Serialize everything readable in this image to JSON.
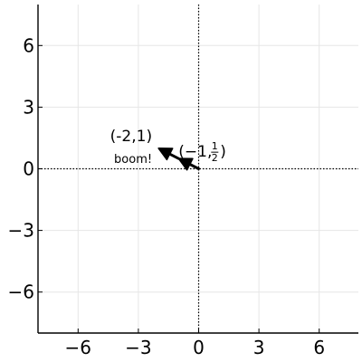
{
  "chart_data": {
    "type": "scatter",
    "title": "",
    "xlabel": "",
    "ylabel": "",
    "xlim": [
      -8,
      8
    ],
    "ylim": [
      -8,
      8
    ],
    "xticks": [
      -6,
      -3,
      0,
      3,
      6
    ],
    "yticks": [
      -6,
      -3,
      0,
      3,
      6
    ],
    "xtick_labels": [
      "−6",
      "−3",
      "0",
      "3",
      "6"
    ],
    "ytick_labels": [
      "−6",
      "−3",
      "0",
      "3",
      "6"
    ],
    "grid": true,
    "reference_lines": {
      "x": 0,
      "y": 0,
      "style": "dotted"
    },
    "arrows": [
      {
        "from": [
          0,
          0
        ],
        "to": [
          -1,
          0.5
        ]
      },
      {
        "from": [
          -1,
          0.5
        ],
        "to": [
          -2,
          1
        ]
      }
    ],
    "annotations": [
      {
        "text": "(-2,1)",
        "x": -2,
        "y": 1,
        "size": "large"
      },
      {
        "text": "boom!",
        "x": -2,
        "y": 1,
        "size": "small"
      },
      {
        "text": "(−1, 1/2)",
        "x": -1,
        "y": 0.5,
        "size": "large"
      }
    ],
    "annotation_math": {
      "prefix": "(−1,",
      "numerator": "1",
      "denominator": "2",
      "suffix": ")"
    },
    "colors": {
      "axis": "#000000",
      "grid": "#e6e6e6",
      "arrow": "#000000"
    }
  }
}
